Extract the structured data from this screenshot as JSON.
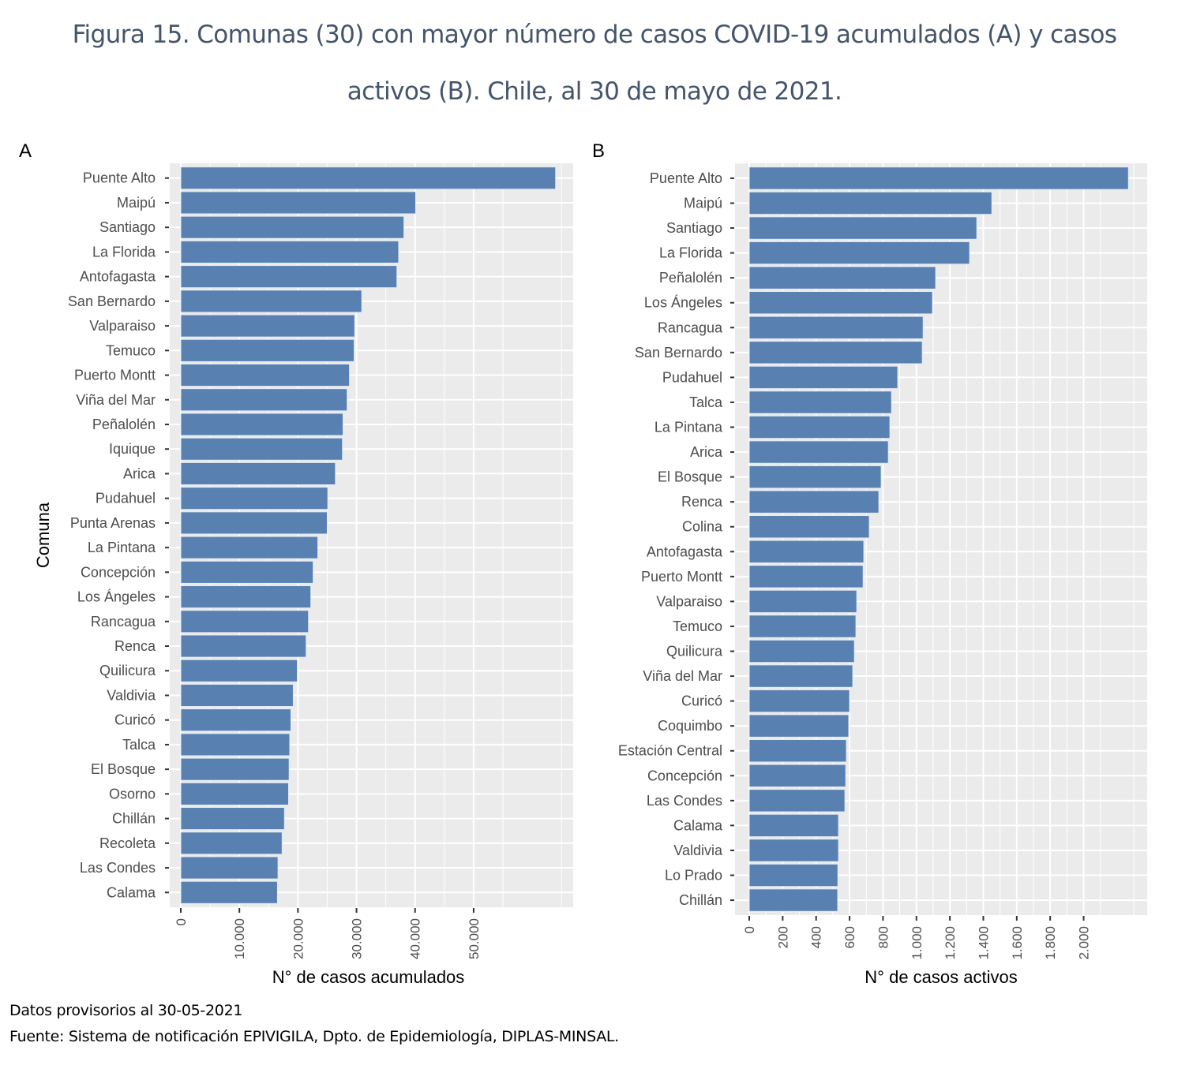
{
  "title": {
    "line1": "Figura 15. Comunas (30) con mayor número de casos COVID-19 acumulados (A) y casos",
    "line2": "activos (B). Chile, al 30 de mayo de 2021."
  },
  "footer": {
    "line1": "Datos provisorios al 30-05-2021",
    "line2": "Fuente: Sistema de notificación EPIVIGILA, Dpto. de Epidemiología, DIPLAS-MINSAL."
  },
  "colors": {
    "bar": "#5880b0",
    "panel": "#ebebeb",
    "grid": "#ffffff"
  },
  "chart_data": [
    {
      "type": "bar",
      "orientation": "horizontal",
      "panel_label": "A",
      "xlabel": "N° de casos acumulados",
      "ylabel": "Comuna",
      "xlim": [
        0,
        67000
      ],
      "xticks": [
        0,
        10000,
        20000,
        30000,
        40000,
        50000
      ],
      "xtick_labels": [
        "0",
        "10.000",
        "20.000",
        "30.000",
        "40.000",
        "50.000"
      ],
      "minor_step": 5000,
      "grid": true,
      "categories": [
        "Puente Alto",
        "Maipú",
        "Santiago",
        "La Florida",
        "Antofagasta",
        "San Bernardo",
        "Valparaiso",
        "Temuco",
        "Puerto Montt",
        "Viña del Mar",
        "Peñalolén",
        "Iquique",
        "Arica",
        "Pudahuel",
        "Punta Arenas",
        "La Pintana",
        "Concepción",
        "Los Ángeles",
        "Rancagua",
        "Renca",
        "Quilicura",
        "Valdivia",
        "Curicó",
        "Talca",
        "El Bosque",
        "Osorno",
        "Chillán",
        "Recoleta",
        "Las Condes",
        "Calama"
      ],
      "values": [
        64000,
        40100,
        38100,
        37200,
        36900,
        30900,
        29700,
        29600,
        28800,
        28400,
        27700,
        27600,
        26400,
        25100,
        25000,
        23400,
        22600,
        22200,
        21800,
        21400,
        19900,
        19200,
        18800,
        18600,
        18500,
        18400,
        17700,
        17300,
        16600,
        16500
      ]
    },
    {
      "type": "bar",
      "orientation": "horizontal",
      "panel_label": "B",
      "xlabel": "N° de casos activos",
      "ylabel": "",
      "xlim": [
        0,
        2380
      ],
      "xticks": [
        0,
        200,
        400,
        600,
        800,
        1000,
        1200,
        1400,
        1600,
        1800,
        2000
      ],
      "xtick_labels": [
        "0",
        "200",
        "400",
        "600",
        "800",
        "1.000",
        "1.200",
        "1.400",
        "1.600",
        "1.800",
        "2.000"
      ],
      "minor_step": 100,
      "grid": true,
      "categories": [
        "Puente Alto",
        "Maipú",
        "Santiago",
        "La Florida",
        "Peñalolén",
        "Los Ángeles",
        "Rancagua",
        "San Bernardo",
        "Pudahuel",
        "Talca",
        "La Pintana",
        "Arica",
        "El Bosque",
        "Renca",
        "Colina",
        "Antofagasta",
        "Puerto Montt",
        "Valparaiso",
        "Temuco",
        "Quilicura",
        "Viña del Mar",
        "Curicó",
        "Coquimbo",
        "Estación Central",
        "Concepción",
        "Las Condes",
        "Calama",
        "Valdivia",
        "Lo Prado",
        "Chillán"
      ],
      "values": [
        2268,
        1451,
        1361,
        1318,
        1115,
        1096,
        1040,
        1035,
        888,
        851,
        841,
        832,
        789,
        775,
        718,
        685,
        681,
        643,
        638,
        629,
        619,
        600,
        595,
        581,
        577,
        572,
        534,
        534,
        530,
        529
      ]
    }
  ]
}
